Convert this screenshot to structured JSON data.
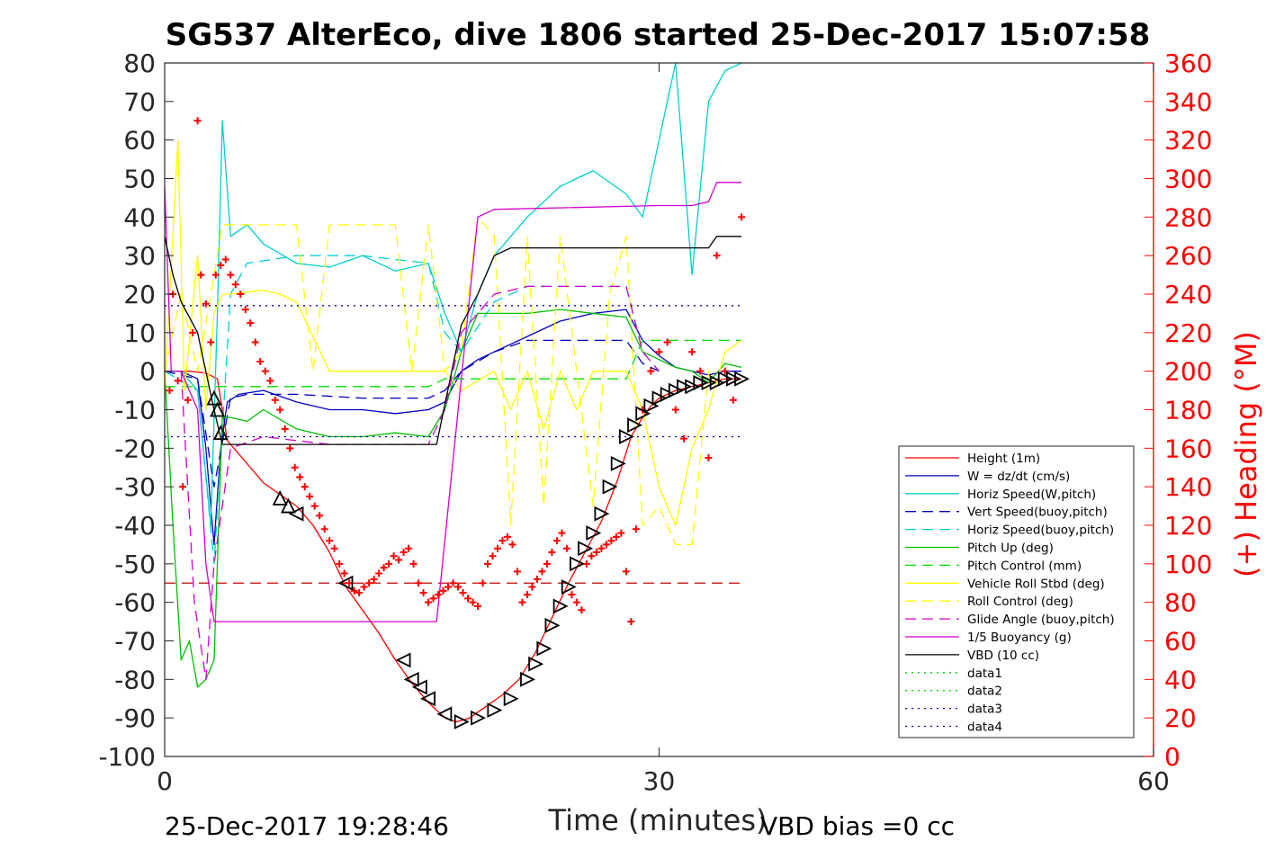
{
  "chart_data": {
    "type": "line",
    "title": "SG537 AlterEco, dive 1806 started 25-Dec-2017 15:07:58",
    "xlabel": "Time (minutes)",
    "ylabel_left": "",
    "ylabel_right": "(+) Heading (°M)",
    "xlim": [
      0,
      60
    ],
    "ylim_left": [
      -100,
      80
    ],
    "ylim_right": [
      0,
      360
    ],
    "x_ticks": [
      "0",
      "30",
      "60"
    ],
    "y_ticks_left": [
      "80",
      "70",
      "60",
      "50",
      "40",
      "30",
      "20",
      "10",
      "0",
      "-10",
      "-20",
      "-30",
      "-40",
      "-50",
      "-60",
      "-70",
      "-80",
      "-90",
      "-100"
    ],
    "y_ticks_right": [
      "360",
      "340",
      "320",
      "300",
      "280",
      "260",
      "240",
      "220",
      "200",
      "180",
      "160",
      "140",
      "120",
      "100",
      "80",
      "60",
      "40",
      "20",
      "0"
    ],
    "grid": false,
    "legend_position": "bottom-right",
    "footer_left": "25-Dec-2017 19:28:46",
    "footer_right": "VBD bias =0 cc",
    "series": [
      {
        "name": "Height (1m)",
        "color": "#ff0000",
        "style": "solid",
        "x": [
          0,
          1.5,
          2.5,
          3.2,
          3.8,
          5,
          6,
          7,
          8,
          9,
          10,
          11,
          12,
          13,
          14,
          15,
          16,
          17,
          17.7,
          18.5,
          19.5,
          20.5,
          21.5,
          22.5,
          23.5,
          24.5,
          25.5,
          26.5,
          27.5,
          28.3,
          29,
          29.5,
          30,
          31,
          32,
          33,
          34,
          35
        ],
        "y": [
          0,
          0,
          -0.5,
          -2,
          -18,
          -24,
          -29,
          -32,
          -35,
          -40,
          -47,
          -56,
          -62,
          -68,
          -75,
          -81,
          -86,
          -90,
          -91,
          -90,
          -87,
          -84,
          -80,
          -73,
          -64,
          -55,
          -47,
          -39,
          -28,
          -17,
          -12,
          -9,
          -7,
          -5,
          -4,
          -3,
          -2,
          -2
        ]
      },
      {
        "name": "W = dz/dt (cm/s)",
        "color": "#0000c0",
        "style": "solid",
        "x": [
          0,
          1,
          2,
          2.5,
          3,
          3.4,
          3.8,
          4.5,
          6,
          8,
          10,
          12,
          14,
          16,
          17,
          18,
          19,
          20,
          22,
          24,
          26,
          28,
          29,
          30,
          31,
          32,
          33,
          34,
          35
        ],
        "y": [
          0,
          0,
          -2,
          -20,
          -45,
          -20,
          -8,
          -6,
          -5,
          -8,
          -10,
          -10,
          -11,
          -10,
          -8,
          0,
          3,
          5,
          9,
          13,
          15,
          16,
          8,
          4,
          1,
          0,
          -1,
          0,
          0
        ]
      },
      {
        "name": "Horiz Speed(W,pitch)",
        "color": "#00d0d0",
        "style": "solid",
        "x": [
          0,
          1,
          2,
          2.8,
          3.2,
          3.5,
          4,
          5,
          6,
          8,
          10,
          12,
          14,
          16,
          17,
          18,
          19,
          20,
          22,
          24,
          26,
          28,
          29,
          30,
          31,
          32,
          33,
          34,
          35
        ],
        "y": [
          0,
          0,
          -5,
          -40,
          15,
          65,
          35,
          38,
          33,
          28,
          27,
          30,
          26,
          28,
          15,
          5,
          20,
          30,
          40,
          48,
          52,
          46,
          40,
          60,
          80,
          25,
          70,
          78,
          80
        ]
      },
      {
        "name": "Vert Speed(buoy,pitch)",
        "color": "#0000c0",
        "style": "dashed",
        "x": [
          0,
          2,
          3,
          4,
          5,
          8,
          12,
          16,
          17,
          18,
          20,
          22,
          24,
          26,
          28,
          29,
          30
        ],
        "y": [
          0,
          -2,
          -30,
          -7,
          -6,
          -6,
          -7,
          -7,
          -5,
          0,
          5,
          8,
          8,
          8,
          8,
          2,
          0
        ]
      },
      {
        "name": "Horiz Speed(buoy,pitch)",
        "color": "#00d0d0",
        "style": "dashed",
        "x": [
          0,
          2,
          3,
          4,
          5,
          8,
          12,
          16,
          17,
          18,
          20,
          22,
          24,
          26,
          28,
          29,
          30
        ],
        "y": [
          0,
          -5,
          -50,
          20,
          28,
          30,
          30,
          28,
          10,
          5,
          18,
          22,
          22,
          22,
          22,
          5,
          0
        ]
      },
      {
        "name": "Pitch Up (deg)",
        "color": "#00c000",
        "style": "solid",
        "x": [
          0,
          0.5,
          1,
          1.5,
          2,
          2.5,
          3,
          3.5,
          4,
          5,
          6,
          8,
          10,
          12,
          14,
          16,
          17,
          18,
          19,
          20,
          22,
          24,
          26,
          28,
          29,
          30,
          31,
          32,
          33,
          34,
          35
        ],
        "y": [
          0,
          -40,
          -75,
          -70,
          -82,
          -80,
          -75,
          -12,
          -12,
          -13,
          -10,
          -15,
          -17,
          -17,
          -16,
          -17,
          -10,
          5,
          15,
          15,
          15,
          16,
          15,
          14,
          5,
          3,
          1,
          0,
          -3,
          2,
          1
        ]
      },
      {
        "name": "Pitch Control (mm)",
        "color": "#00e000",
        "style": "dashed",
        "x": [
          0,
          2.5,
          3,
          10,
          16,
          17,
          18,
          20,
          28,
          29,
          35
        ],
        "y": [
          -4,
          -4,
          -4,
          -4,
          -4,
          -2,
          -2,
          -2,
          -2,
          8,
          8
        ]
      },
      {
        "name": "Vehicle Roll Stbd (deg)",
        "color": "#ffff00",
        "style": "solid",
        "x": [
          0,
          0.8,
          1.2,
          2,
          2.5,
          3,
          3.5,
          4,
          6,
          7,
          8,
          10,
          12,
          14,
          16,
          17,
          18,
          20,
          21,
          22,
          23,
          24,
          25,
          26,
          27,
          28,
          29,
          30,
          31,
          32,
          33,
          34,
          35
        ],
        "y": [
          -5,
          60,
          -5,
          30,
          -10,
          15,
          20,
          20,
          21,
          20,
          18,
          0,
          0,
          0,
          0,
          0,
          -5,
          0,
          -10,
          0,
          -15,
          0,
          -10,
          0,
          0,
          0,
          -10,
          -30,
          -40,
          -20,
          -10,
          5,
          8
        ]
      },
      {
        "name": "Roll Control (deg)",
        "color": "#ffff00",
        "style": "dashed",
        "x": [
          0,
          1,
          2,
          2.8,
          3.5,
          4,
          8,
          9,
          10,
          14,
          15,
          16,
          17,
          18,
          19,
          20,
          21,
          22,
          23,
          24,
          26,
          27,
          28,
          29,
          30,
          31,
          32,
          33
        ],
        "y": [
          0,
          20,
          0,
          20,
          38,
          38,
          38,
          0,
          38,
          38,
          0,
          38,
          0,
          5,
          40,
          35,
          -40,
          35,
          -35,
          35,
          -35,
          20,
          35,
          -40,
          -35,
          -45,
          -45,
          0
        ]
      },
      {
        "name": "Glide Angle (buoy,pitch)",
        "color": "#d000d0",
        "style": "dashed",
        "x": [
          0,
          1,
          1.8,
          2.5,
          3,
          4,
          6,
          8,
          10,
          12,
          14,
          16,
          17,
          18,
          20,
          22,
          24,
          26,
          28,
          29,
          30
        ],
        "y": [
          0,
          0,
          -60,
          -80,
          -50,
          -20,
          -17,
          -18,
          -19,
          -19,
          -19,
          -19,
          -10,
          10,
          20,
          22,
          22,
          22,
          22,
          5,
          0
        ]
      },
      {
        "name": "1/5 Buoyancy (g)",
        "color": "#d000d0",
        "style": "solid",
        "x": [
          0,
          0.4,
          1,
          2,
          2.5,
          3,
          16,
          16.5,
          19,
          20,
          30,
          32,
          33,
          33.5,
          35
        ],
        "y": [
          48,
          0,
          0,
          -10,
          -50,
          -65,
          -65,
          -65,
          40,
          42,
          43,
          43,
          44,
          49,
          49
        ]
      },
      {
        "name": "VBD (10 cc)",
        "color": "#000000",
        "style": "solid",
        "x": [
          0,
          0.5,
          1,
          2,
          3,
          3.5,
          16,
          16.5,
          18,
          19,
          20,
          21,
          33,
          33.5,
          35
        ],
        "y": [
          35,
          25,
          18,
          10,
          -10,
          -19,
          -19,
          -19,
          12,
          20,
          30,
          32,
          32,
          35,
          35
        ]
      },
      {
        "name": "data1",
        "color": "#00d000",
        "style": "dotted",
        "x": [],
        "y": []
      },
      {
        "name": "data2",
        "color": "#00d000",
        "style": "dotted",
        "x": [],
        "y": []
      },
      {
        "name": "data3",
        "color": "#0000b0",
        "style": "dotted",
        "x": [
          0,
          35
        ],
        "y": [
          17,
          17
        ]
      },
      {
        "name": "data4",
        "color": "#0000b0",
        "style": "dotted",
        "x": [
          0,
          35
        ],
        "y": [
          -17,
          -17
        ]
      }
    ],
    "reference_line": {
      "color": "#c00000",
      "style": "dashed",
      "y": -55,
      "x": [
        0,
        35
      ]
    },
    "heading_points": {
      "color": "#ff0000",
      "axis": "right",
      "x": [
        0.3,
        0.5,
        0.8,
        1.1,
        1.4,
        1.7,
        2,
        2.2,
        2.5,
        2.8,
        3.1,
        3.4,
        3.7,
        4,
        4.3,
        4.6,
        4.9,
        5.2,
        5.5,
        5.8,
        6.1,
        6.4,
        6.7,
        7,
        7.3,
        7.6,
        7.9,
        8.2,
        8.5,
        8.8,
        9.1,
        9.4,
        9.7,
        10,
        10.3,
        10.6,
        10.9,
        11.2,
        11.5,
        11.8,
        12.1,
        12.4,
        12.7,
        13,
        13.3,
        13.6,
        13.9,
        14.2,
        14.5,
        14.8,
        15.1,
        15.4,
        15.7,
        16,
        16.3,
        16.6,
        16.9,
        17.2,
        17.5,
        17.8,
        18.1,
        18.4,
        18.7,
        19,
        19.3,
        19.6,
        19.9,
        20.2,
        20.5,
        20.8,
        21.1,
        21.4,
        21.7,
        22,
        22.3,
        22.6,
        22.9,
        23.2,
        23.5,
        23.8,
        24.1,
        24.4,
        24.7,
        25,
        25.3,
        25.6,
        25.9,
        26.2,
        26.5,
        26.8,
        27.1,
        27.4,
        27.7,
        28,
        28.3,
        28.6,
        29,
        29.5,
        30,
        30.5,
        31,
        31.5,
        32,
        32.5,
        33,
        33.5,
        34,
        34.5,
        35
      ],
      "y": [
        190,
        240,
        195,
        140,
        185,
        220,
        330,
        250,
        235,
        215,
        250,
        255,
        258,
        250,
        245,
        240,
        232,
        225,
        215,
        205,
        200,
        195,
        185,
        180,
        170,
        160,
        150,
        145,
        140,
        135,
        130,
        125,
        118,
        112,
        108,
        100,
        95,
        90,
        86,
        85,
        88,
        90,
        92,
        95,
        98,
        100,
        104,
        102,
        106,
        108,
        100,
        90,
        85,
        80,
        82,
        84,
        86,
        88,
        90,
        88,
        85,
        82,
        80,
        78,
        90,
        100,
        104,
        108,
        112,
        114,
        110,
        96,
        80,
        84,
        88,
        92,
        96,
        100,
        106,
        112,
        116,
        108,
        84,
        80,
        76,
        100,
        104,
        106,
        108,
        110,
        112,
        114,
        116,
        96,
        70,
        118,
        180,
        200,
        210,
        215,
        180,
        165,
        210,
        200,
        155,
        260,
        200,
        185,
        280
      ]
    },
    "dive_markers": {
      "color": "#000000",
      "marker": "triangle",
      "x": [
        3,
        3.2,
        3.4,
        7,
        7.5,
        8,
        11,
        14.5,
        15,
        15.5,
        16,
        17,
        18,
        19,
        20,
        21,
        22,
        22.5,
        23,
        23.5,
        24,
        24.5,
        25,
        25.5,
        26,
        26.5,
        27,
        27.5,
        28,
        28.5,
        29,
        29.5,
        30,
        30.5,
        31,
        31.5,
        32,
        32.5,
        33,
        33.5,
        34,
        34.5,
        35
      ],
      "y": [
        -7,
        -10,
        -16,
        -33,
        -35,
        -37,
        -55,
        -75,
        -80,
        -82,
        -85,
        -89,
        -91,
        -90,
        -88,
        -85,
        -80,
        -76,
        -72,
        -66,
        -61,
        -56,
        -50,
        -46,
        -42,
        -37,
        -30,
        -24,
        -17,
        -14,
        -11,
        -9,
        -7,
        -6,
        -5,
        -4,
        -4,
        -3,
        -3,
        -3,
        -2,
        -2,
        -2
      ]
    }
  }
}
